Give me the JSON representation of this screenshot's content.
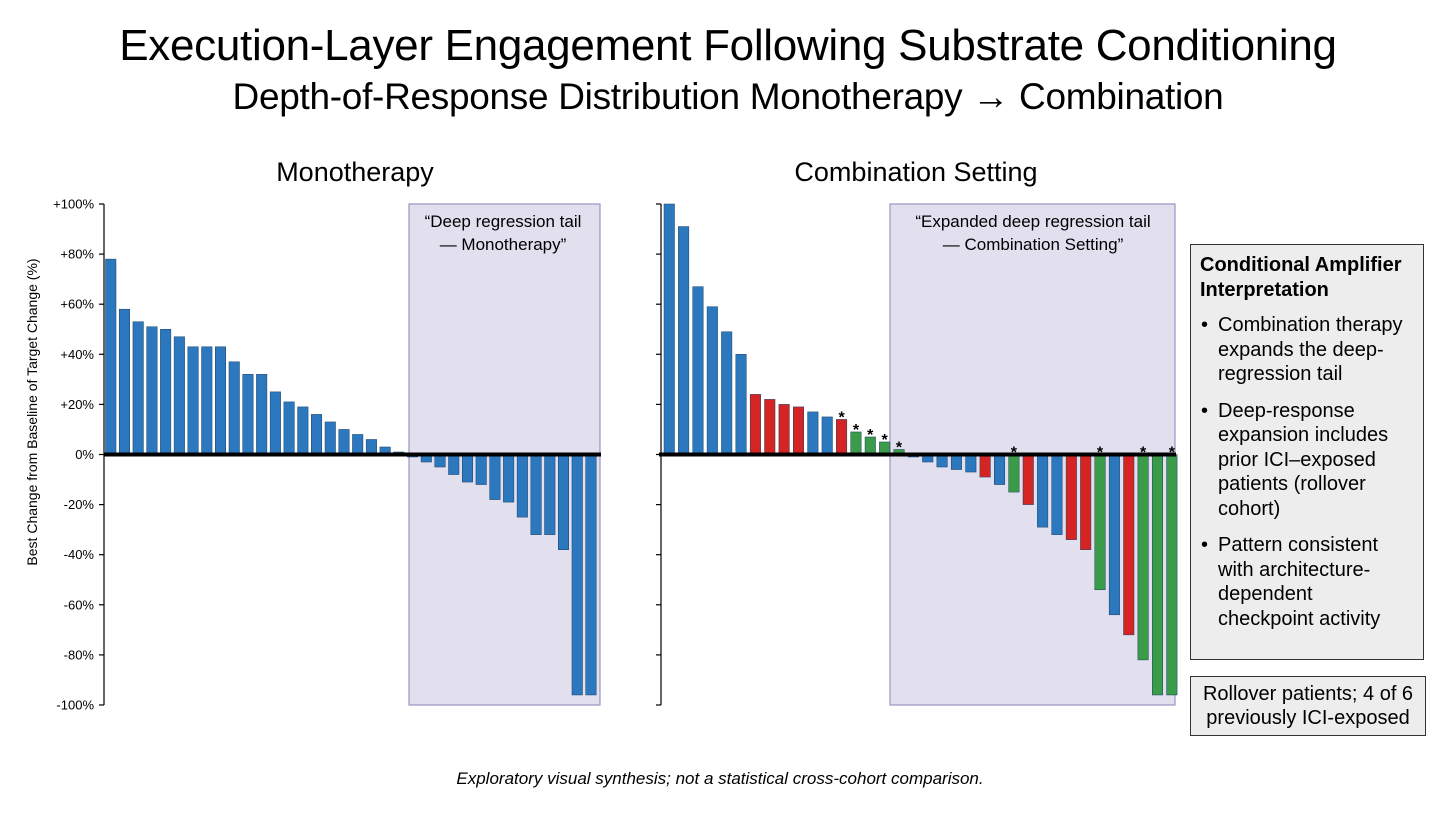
{
  "title": "Execution-Layer Engagement Following Substrate Conditioning",
  "subtitle": "Depth-of-Response Distribution Monotherapy → Combination",
  "ylabel": "Best Change from Baseline of Target Change (%)",
  "yticks": [
    "+100%",
    "+80%",
    "+60%",
    "+40%",
    "+20%",
    "0%",
    "-20%",
    "-40%",
    "-60%",
    "-80%",
    "-100%"
  ],
  "colors": {
    "blue": "#2b78bf",
    "red": "#d42424",
    "green": "#3a9b48",
    "shade": "#e2e0ef",
    "shade_border": "#9a93c6"
  },
  "chart_data": [
    {
      "type": "bar",
      "title": "Monotherapy",
      "ylabel": "Best Change from Baseline of Target Change (%)",
      "ylim": [
        -100,
        100
      ],
      "shaded_region_label": "“Deep regression tail — Monotherapy”",
      "series": [
        {
          "values": [
            78,
            58,
            53,
            51,
            50,
            47,
            43,
            43,
            43,
            37,
            32,
            32,
            25,
            21,
            19,
            16,
            13,
            10,
            8,
            6,
            3,
            1,
            -1,
            -3,
            -5,
            -8,
            -11,
            -12,
            -18,
            -19,
            -25,
            -32,
            -32,
            -38,
            -96,
            -96
          ],
          "colors": [
            "blue",
            "blue",
            "blue",
            "blue",
            "blue",
            "blue",
            "blue",
            "blue",
            "blue",
            "blue",
            "blue",
            "blue",
            "blue",
            "blue",
            "blue",
            "blue",
            "blue",
            "blue",
            "blue",
            "blue",
            "blue",
            "blue",
            "blue",
            "blue",
            "blue",
            "blue",
            "blue",
            "blue",
            "blue",
            "blue",
            "blue",
            "blue",
            "blue",
            "blue",
            "blue",
            "blue"
          ],
          "asterisk": []
        }
      ]
    },
    {
      "type": "bar",
      "title": "Combination Setting",
      "ylim": [
        -100,
        100
      ],
      "shaded_region_label": "“Expanded deep regression tail — Combination Setting”",
      "series": [
        {
          "values": [
            100,
            91,
            67,
            59,
            49,
            40,
            24,
            22,
            20,
            19,
            17,
            15,
            14,
            9,
            7,
            5,
            2,
            -1,
            -3,
            -5,
            -6,
            -7,
            -9,
            -12,
            -15,
            -20,
            -29,
            -32,
            -34,
            -38,
            -54,
            -64,
            -72,
            -82,
            -96,
            -96
          ],
          "colors": [
            "blue",
            "blue",
            "blue",
            "blue",
            "blue",
            "blue",
            "red",
            "red",
            "red",
            "red",
            "blue",
            "blue",
            "red",
            "green",
            "green",
            "green",
            "green",
            "blue",
            "blue",
            "blue",
            "blue",
            "blue",
            "red",
            "blue",
            "green",
            "red",
            "blue",
            "blue",
            "red",
            "red",
            "green",
            "blue",
            "red",
            "green",
            "green",
            "green"
          ],
          "asterisk": [
            12,
            13,
            14,
            15,
            16,
            24,
            30,
            33,
            35
          ]
        }
      ]
    }
  ],
  "interpretation": {
    "title": "Conditional Amplifier Interpretation",
    "bullets": [
      "Combination therapy expands the deep-regression tail",
      "Deep-response expansion includes prior ICI–exposed patients (rollover cohort)",
      "Pattern consistent with architecture-dependent checkpoint activity"
    ]
  },
  "rollover_note": "Rollover patients; 4 of 6 previously ICI-exposed",
  "footnote": "Exploratory visual synthesis; not a statistical cross-cohort comparison."
}
